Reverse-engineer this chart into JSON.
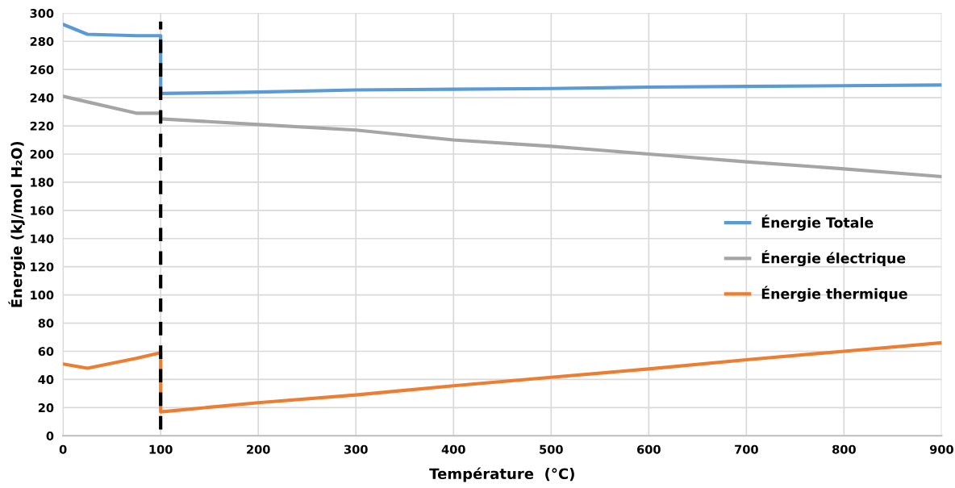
{
  "chart_data": {
    "type": "line",
    "xlabel": "Température  (°C)",
    "ylabel": "Énergie (kJ/mol H₂O)",
    "xlim": [
      0,
      900
    ],
    "xticks": [
      0,
      100,
      200,
      300,
      400,
      500,
      600,
      700,
      800,
      900
    ],
    "ylim": [
      0,
      300
    ],
    "yticks": [
      0,
      20,
      40,
      60,
      80,
      100,
      120,
      140,
      160,
      180,
      200,
      220,
      240,
      260,
      280,
      300
    ],
    "grid": true,
    "legend": "right",
    "marker": "none",
    "line_style": "solid",
    "series": [
      {
        "name": "Énergie Totale",
        "color": "#5b9bd5",
        "x": [
          0,
          25,
          75,
          100,
          100,
          200,
          300,
          400,
          500,
          600,
          700,
          800,
          900
        ],
        "values": [
          292,
          285,
          284,
          284,
          243,
          244,
          245.5,
          246,
          246.5,
          247.5,
          248,
          248.5,
          249
        ]
      },
      {
        "name": "Énergie électrique",
        "color": "#a5a5a5",
        "x": [
          0,
          25,
          75,
          100,
          100,
          200,
          300,
          400,
          500,
          600,
          700,
          800,
          900
        ],
        "values": [
          241,
          237,
          229,
          229,
          225,
          221,
          217,
          210,
          205.5,
          200,
          194.5,
          189.5,
          184
        ]
      },
      {
        "name": "Énergie thermique",
        "color": "#ed7d31",
        "x": [
          0,
          25,
          75,
          100,
          100,
          200,
          300,
          400,
          500,
          600,
          700,
          800,
          900
        ],
        "values": [
          51,
          48,
          55,
          59,
          17,
          23.5,
          29,
          35.5,
          41.5,
          47.5,
          54,
          60,
          66
        ]
      }
    ],
    "ref_lines": [
      {
        "axis": "x",
        "value": 100,
        "color": "#000000",
        "line_style": "dashed"
      }
    ]
  }
}
